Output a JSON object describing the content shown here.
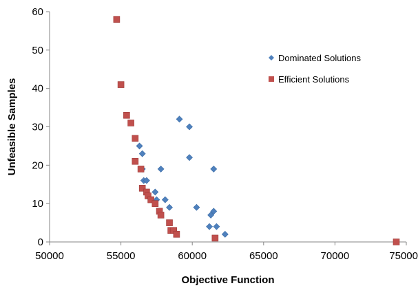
{
  "chart_data": {
    "type": "scatter",
    "title": "",
    "xlabel": "Objective Function",
    "ylabel": "Unfeasible Samples",
    "xlim": [
      50000,
      75000
    ],
    "ylim": [
      0,
      60
    ],
    "x_ticks": [
      "50000",
      "55000",
      "60000",
      "65000",
      "70000",
      "75000"
    ],
    "y_ticks": [
      "0",
      "10",
      "20",
      "30",
      "40",
      "50",
      "60"
    ],
    "grid": false,
    "legend_placement": "right",
    "series": [
      {
        "name": "Dominated Solutions",
        "marker": "diamond",
        "color": "#4F81BD",
        "points": [
          [
            59100,
            32
          ],
          [
            59800,
            30
          ],
          [
            56300,
            25
          ],
          [
            56500,
            23
          ],
          [
            59800,
            22
          ],
          [
            57800,
            19
          ],
          [
            61500,
            19
          ],
          [
            56500,
            19
          ],
          [
            56600,
            16
          ],
          [
            56800,
            16
          ],
          [
            57400,
            13
          ],
          [
            57500,
            11
          ],
          [
            58100,
            11
          ],
          [
            58400,
            9
          ],
          [
            60300,
            9
          ],
          [
            61500,
            8
          ],
          [
            61300,
            7
          ],
          [
            61700,
            4
          ],
          [
            61200,
            4
          ],
          [
            62300,
            2
          ]
        ]
      },
      {
        "name": "Efficient Solutions",
        "marker": "square",
        "color": "#C0504D",
        "points": [
          [
            54700,
            58
          ],
          [
            55000,
            41
          ],
          [
            55400,
            33
          ],
          [
            55700,
            31
          ],
          [
            56000,
            27
          ],
          [
            56000,
            21
          ],
          [
            56400,
            19
          ],
          [
            56500,
            14
          ],
          [
            56800,
            13
          ],
          [
            56900,
            12
          ],
          [
            57100,
            11
          ],
          [
            57400,
            10
          ],
          [
            57700,
            8
          ],
          [
            57800,
            7
          ],
          [
            58400,
            5
          ],
          [
            58500,
            3
          ],
          [
            58700,
            3
          ],
          [
            58900,
            2
          ],
          [
            61600,
            1
          ],
          [
            74300,
            0
          ]
        ]
      }
    ]
  }
}
